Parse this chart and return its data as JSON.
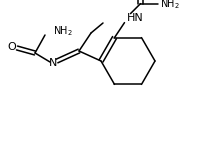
{
  "background_color": "#ffffff",
  "line_color": "#000000",
  "text_color": "#000000",
  "font_size": 7,
  "linewidth": 1.1,
  "figsize": [
    2.14,
    1.51
  ],
  "dpi": 100,
  "xlim": [
    0,
    214
  ],
  "ylim": [
    0,
    151
  ]
}
